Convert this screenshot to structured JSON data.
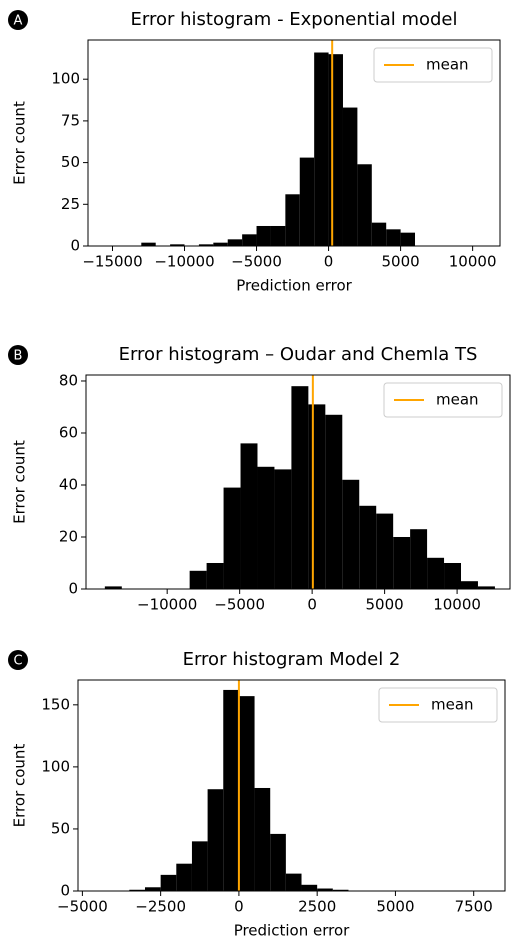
{
  "chart_data": [
    {
      "type": "histogram",
      "panel_label": "A",
      "title": "Error histogram - Exponential model",
      "xlabel": "Prediction error",
      "ylabel": "Error count",
      "bins": [
        -13000,
        -12000,
        -11000,
        -10000,
        -9000,
        -8000,
        -7000,
        -6000,
        -5000,
        -4000,
        -3000,
        -2000,
        -1000,
        0,
        1000,
        2000,
        3000,
        4000,
        5000,
        6000
      ],
      "values": [
        2,
        0,
        1,
        0,
        1,
        2,
        4,
        7,
        12,
        12,
        31,
        53,
        116,
        115,
        83,
        49,
        14,
        10,
        8
      ],
      "color": "#000000",
      "mean": {
        "name": "mean",
        "value": 250,
        "color": "#ffa500"
      },
      "xlim": [
        -16700,
        11900
      ],
      "ylim": [
        0,
        123.5
      ],
      "xticks": [
        {
          "value": -15000,
          "label": "−15000"
        },
        {
          "value": -10000,
          "label": "−10000"
        },
        {
          "value": -5000,
          "label": "−5000"
        },
        0,
        5000,
        10000
      ],
      "yticks": [
        0,
        25,
        50,
        75,
        100
      ],
      "legend": "upper right"
    },
    {
      "type": "histogram",
      "panel_label": "B",
      "title": "Error histogram – Oudar and Chemla TS",
      "ylabel": "Error count",
      "bins": [
        -14300,
        -13130,
        -11960,
        -10790,
        -9620,
        -8450,
        -7280,
        -6110,
        -4940,
        -3770,
        -2600,
        -1430,
        -260,
        910,
        2080,
        3250,
        4420,
        5590,
        6760,
        7930,
        9100,
        10270,
        11440,
        12610
      ],
      "values": [
        1,
        0,
        0,
        0,
        0,
        7,
        10,
        39,
        56,
        47,
        46,
        78,
        71,
        67,
        42,
        32,
        29,
        20,
        23,
        12,
        10,
        3,
        1
      ],
      "color": "#000000",
      "mean": {
        "name": "mean",
        "value": 50,
        "color": "#ffa500"
      },
      "xlim": [
        -15600,
        13650
      ],
      "ylim": [
        0,
        82.3
      ],
      "xticks": [
        {
          "value": -10000,
          "label": "−10000"
        },
        {
          "value": -5000,
          "label": "−5000"
        },
        0,
        5000,
        10000
      ],
      "yticks": [
        0,
        20,
        40,
        60,
        80
      ],
      "legend": "upper right"
    },
    {
      "type": "histogram",
      "panel_label": "C",
      "title": "Error histogram Model 2",
      "xlabel": "Prediction error",
      "ylabel": "Error count",
      "bins": [
        -3500,
        -3000,
        -2500,
        -2000,
        -1500,
        -1000,
        -500,
        0,
        500,
        1000,
        1500,
        2000,
        2500,
        3000,
        3500
      ],
      "values": [
        1,
        3,
        13,
        22,
        40,
        82,
        162,
        157,
        83,
        46,
        14,
        5,
        2,
        1
      ],
      "color": "#000000",
      "mean": {
        "name": "mean",
        "value": 0,
        "color": "#ffa500"
      },
      "xlim": [
        -5140,
        8500
      ],
      "ylim": [
        0,
        170
      ],
      "xticks": [
        {
          "value": -5000,
          "label": "−5000"
        },
        {
          "value": -2500,
          "label": "−2500"
        },
        0,
        2500,
        5000,
        7500
      ],
      "yticks": [
        0,
        50,
        100,
        150
      ],
      "legend": "upper right"
    }
  ]
}
